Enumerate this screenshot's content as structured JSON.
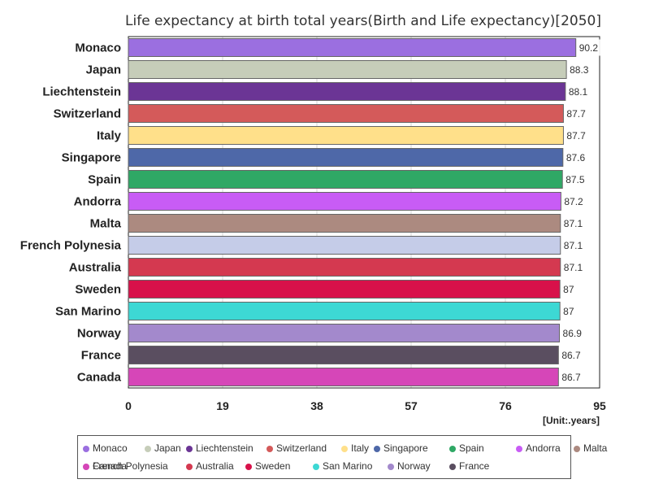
{
  "chart_data": {
    "type": "bar",
    "orientation": "horizontal",
    "title": "Life expectancy at birth total years(Birth and Life expectancy)[2050]",
    "unit_label": "[Unit:.years]",
    "xlim": [
      0,
      95
    ],
    "xticks": [
      "0",
      "19",
      "38",
      "57",
      "76",
      "95"
    ],
    "grid": true,
    "legend_position": "bottom",
    "categories": [
      "Monaco",
      "Japan",
      "Liechtenstein",
      "Switzerland",
      "Italy",
      "Singapore",
      "Spain",
      "Andorra",
      "Malta",
      "French Polynesia",
      "Australia",
      "Sweden",
      "San Marino",
      "Norway",
      "France",
      "Canada"
    ],
    "values": [
      90.2,
      88.3,
      88.1,
      87.7,
      87.7,
      87.6,
      87.5,
      87.2,
      87.1,
      87.1,
      87.1,
      87,
      87,
      86.9,
      86.7,
      86.7
    ],
    "value_labels": [
      "90.2",
      "88.3",
      "88.1",
      "87.7",
      "87.7",
      "87.6",
      "87.5",
      "87.2",
      "87.1",
      "87.1",
      "87.1",
      "87",
      "87",
      "86.9",
      "86.7",
      "86.7"
    ],
    "colors": [
      "#9b6fe0",
      "#c6cdb9",
      "#6b3595",
      "#d45a5a",
      "#ffe08a",
      "#4e68a8",
      "#2fa865",
      "#c85cf5",
      "#ac8a80",
      "#c5cce8",
      "#d43950",
      "#d8114a",
      "#3dd8d4",
      "#a389cc",
      "#5a4e60",
      "#d646b8"
    ]
  }
}
